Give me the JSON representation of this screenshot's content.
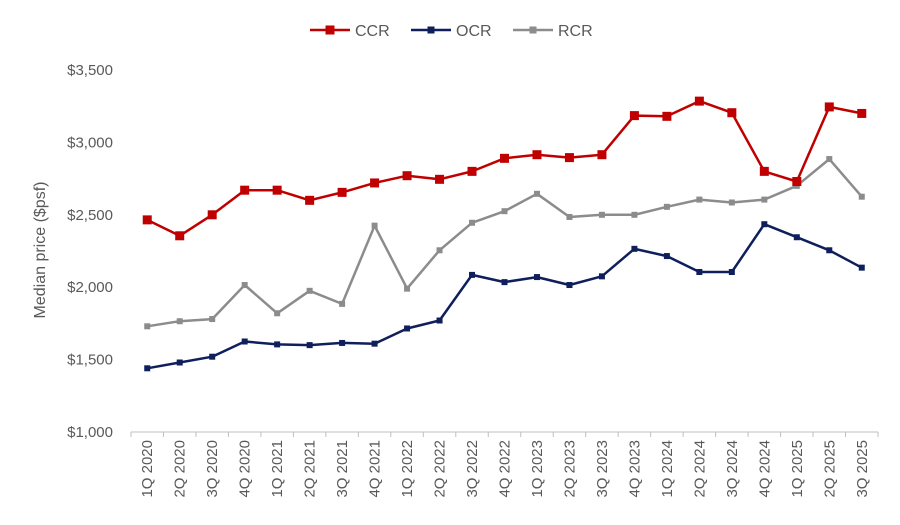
{
  "chart_data": {
    "type": "line",
    "title": "",
    "xlabel": "",
    "ylabel": "Median price ($psf)",
    "ylim": [
      1000,
      3500
    ],
    "y_ticks": [
      1000,
      1500,
      2000,
      2500,
      3000,
      3500
    ],
    "y_tick_labels": [
      "$1,000",
      "$1,500",
      "$2,000",
      "$2,500",
      "$3,000",
      "$3,500"
    ],
    "grid": false,
    "legend_position": "top-center",
    "categories": [
      "1Q 2020",
      "2Q 2020",
      "3Q 2020",
      "4Q 2020",
      "1Q 2021",
      "2Q 2021",
      "3Q 2021",
      "4Q 2021",
      "1Q 2022",
      "2Q 2022",
      "3Q 2022",
      "4Q 2022",
      "1Q 2023",
      "2Q 2023",
      "3Q 2023",
      "4Q 2023",
      "1Q 2024",
      "2Q 2024",
      "3Q 2024",
      "4Q 2024",
      "1Q 2025",
      "2Q 2025",
      "3Q 2025"
    ],
    "series": [
      {
        "name": "CCR",
        "color": "#C00000",
        "values": [
          2465,
          2355,
          2500,
          2670,
          2670,
          2600,
          2655,
          2720,
          2770,
          2745,
          2800,
          2890,
          2915,
          2895,
          2915,
          3185,
          3180,
          3285,
          3205,
          2800,
          2730,
          3245,
          3200
        ]
      },
      {
        "name": "OCR",
        "color": "#0F1F5C",
        "values": [
          1440,
          1480,
          1520,
          1625,
          1605,
          1600,
          1615,
          1610,
          1715,
          1770,
          2085,
          2035,
          2070,
          2015,
          2075,
          2265,
          2215,
          2105,
          2105,
          2435,
          2345,
          2255,
          2135
        ]
      },
      {
        "name": "RCR",
        "color": "#8C8C8C",
        "values": [
          1730,
          1765,
          1780,
          2015,
          1820,
          1975,
          1885,
          2425,
          1990,
          2255,
          2445,
          2525,
          2645,
          2485,
          2500,
          2500,
          2555,
          2605,
          2585,
          2605,
          2700,
          2885,
          2625
        ]
      }
    ]
  }
}
